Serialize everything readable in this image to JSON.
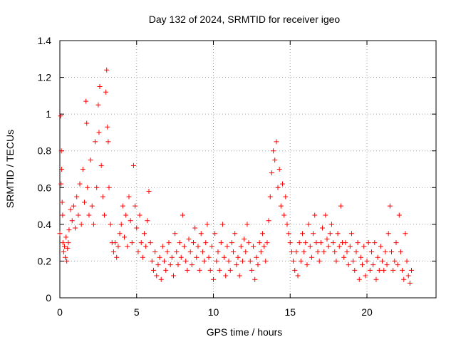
{
  "chart_data": {
    "type": "scatter",
    "title": "Day 132 of 2024, SRMTID for receiver igeo",
    "xlabel": "GPS time / hours",
    "ylabel": "SRMTID / TECUs",
    "xlim": [
      0,
      24.5
    ],
    "ylim": [
      0,
      1.4
    ],
    "xticks": [
      0,
      5,
      10,
      15,
      20
    ],
    "xtick_labels": [
      "0",
      "5",
      "10",
      "15",
      "20"
    ],
    "yticks": [
      0,
      0.2,
      0.4,
      0.6,
      0.8,
      1,
      1.2,
      1.4
    ],
    "ytick_labels": [
      "0",
      "0.2",
      "0.4",
      "0.6",
      "0.8",
      "1",
      "1.2",
      "1.4"
    ],
    "grid": true,
    "marker": "plus",
    "color": "#ff0000",
    "series": [
      {
        "name": "SRMTID",
        "points": [
          [
            0.0,
            0.35
          ],
          [
            0.05,
            0.99
          ],
          [
            0.08,
            0.62
          ],
          [
            0.1,
            0.8
          ],
          [
            0.12,
            0.7
          ],
          [
            0.15,
            0.52
          ],
          [
            0.18,
            0.45
          ],
          [
            0.2,
            0.3
          ],
          [
            0.25,
            0.25
          ],
          [
            0.3,
            0.28
          ],
          [
            0.35,
            0.22
          ],
          [
            0.4,
            0.33
          ],
          [
            0.45,
            0.2
          ],
          [
            0.5,
            0.27
          ],
          [
            0.55,
            0.3
          ],
          [
            0.6,
            0.37
          ],
          [
            0.7,
            0.48
          ],
          [
            0.8,
            0.42
          ],
          [
            0.9,
            0.5
          ],
          [
            1.0,
            0.38
          ],
          [
            1.1,
            0.55
          ],
          [
            1.2,
            0.45
          ],
          [
            1.3,
            0.62
          ],
          [
            1.4,
            0.4
          ],
          [
            1.5,
            0.7
          ],
          [
            1.6,
            0.52
          ],
          [
            1.7,
            1.07
          ],
          [
            1.75,
            0.95
          ],
          [
            1.8,
            0.6
          ],
          [
            1.9,
            0.45
          ],
          [
            2.0,
            0.75
          ],
          [
            2.1,
            0.5
          ],
          [
            2.2,
            0.4
          ],
          [
            2.3,
            0.85
          ],
          [
            2.4,
            0.6
          ],
          [
            2.5,
            1.05
          ],
          [
            2.55,
            0.9
          ],
          [
            2.6,
            1.15
          ],
          [
            2.7,
            0.72
          ],
          [
            2.8,
            0.55
          ],
          [
            2.9,
            0.45
          ],
          [
            3.0,
            1.12
          ],
          [
            3.05,
            1.24
          ],
          [
            3.1,
            0.93
          ],
          [
            3.15,
            0.85
          ],
          [
            3.2,
            0.6
          ],
          [
            3.3,
            0.4
          ],
          [
            3.4,
            0.3
          ],
          [
            3.5,
            0.25
          ],
          [
            3.6,
            0.3
          ],
          [
            3.7,
            0.22
          ],
          [
            3.8,
            0.28
          ],
          [
            3.9,
            0.35
          ],
          [
            4.0,
            0.4
          ],
          [
            4.1,
            0.5
          ],
          [
            4.2,
            0.33
          ],
          [
            4.3,
            0.45
          ],
          [
            4.4,
            0.28
          ],
          [
            4.5,
            0.55
          ],
          [
            4.6,
            0.42
          ],
          [
            4.7,
            0.3
          ],
          [
            4.8,
            0.72
          ],
          [
            4.9,
            0.5
          ],
          [
            5.0,
            0.38
          ],
          [
            5.1,
            0.25
          ],
          [
            5.2,
            0.45
          ],
          [
            5.3,
            0.3
          ],
          [
            5.4,
            0.22
          ],
          [
            5.5,
            0.35
          ],
          [
            5.6,
            0.28
          ],
          [
            5.7,
            0.42
          ],
          [
            5.8,
            0.58
          ],
          [
            5.9,
            0.3
          ],
          [
            6.0,
            0.2
          ],
          [
            6.1,
            0.15
          ],
          [
            6.2,
            0.25
          ],
          [
            6.3,
            0.12
          ],
          [
            6.4,
            0.18
          ],
          [
            6.5,
            0.22
          ],
          [
            6.6,
            0.1
          ],
          [
            6.7,
            0.28
          ],
          [
            6.8,
            0.2
          ],
          [
            6.9,
            0.15
          ],
          [
            7.0,
            0.25
          ],
          [
            7.1,
            0.3
          ],
          [
            7.2,
            0.18
          ],
          [
            7.3,
            0.22
          ],
          [
            7.4,
            0.12
          ],
          [
            7.5,
            0.35
          ],
          [
            7.6,
            0.25
          ],
          [
            7.7,
            0.18
          ],
          [
            7.8,
            0.3
          ],
          [
            7.9,
            0.22
          ],
          [
            8.0,
            0.45
          ],
          [
            8.1,
            0.28
          ],
          [
            8.2,
            0.2
          ],
          [
            8.3,
            0.15
          ],
          [
            8.4,
            0.32
          ],
          [
            8.5,
            0.25
          ],
          [
            8.6,
            0.18
          ],
          [
            8.7,
            0.3
          ],
          [
            8.8,
            0.38
          ],
          [
            8.9,
            0.22
          ],
          [
            9.0,
            0.28
          ],
          [
            9.1,
            0.15
          ],
          [
            9.2,
            0.35
          ],
          [
            9.3,
            0.25
          ],
          [
            9.4,
            0.2
          ],
          [
            9.5,
            0.3
          ],
          [
            9.6,
            0.4
          ],
          [
            9.7,
            0.22
          ],
          [
            9.8,
            0.15
          ],
          [
            9.9,
            0.28
          ],
          [
            10.0,
            0.1
          ],
          [
            10.1,
            0.35
          ],
          [
            10.2,
            0.2
          ],
          [
            10.3,
            0.25
          ],
          [
            10.4,
            0.15
          ],
          [
            10.5,
            0.3
          ],
          [
            10.6,
            0.4
          ],
          [
            10.7,
            0.22
          ],
          [
            10.8,
            0.12
          ],
          [
            10.9,
            0.28
          ],
          [
            11.0,
            0.2
          ],
          [
            11.1,
            0.15
          ],
          [
            11.2,
            0.3
          ],
          [
            11.3,
            0.25
          ],
          [
            11.4,
            0.35
          ],
          [
            11.5,
            0.18
          ],
          [
            11.6,
            0.22
          ],
          [
            11.7,
            0.12
          ],
          [
            11.8,
            0.28
          ],
          [
            11.9,
            0.2
          ],
          [
            12.0,
            0.32
          ],
          [
            12.1,
            0.25
          ],
          [
            12.2,
            0.4
          ],
          [
            12.3,
            0.3
          ],
          [
            12.4,
            0.2
          ],
          [
            12.5,
            0.15
          ],
          [
            12.6,
            0.28
          ],
          [
            12.7,
            0.1
          ],
          [
            12.8,
            0.22
          ],
          [
            12.9,
            0.18
          ],
          [
            13.0,
            0.3
          ],
          [
            13.1,
            0.25
          ],
          [
            13.2,
            0.35
          ],
          [
            13.3,
            0.28
          ],
          [
            13.4,
            0.2
          ],
          [
            13.5,
            0.3
          ],
          [
            13.6,
            0.42
          ],
          [
            13.7,
            0.55
          ],
          [
            13.8,
            0.68
          ],
          [
            13.9,
            0.8
          ],
          [
            14.0,
            0.75
          ],
          [
            14.1,
            0.85
          ],
          [
            14.2,
            0.6
          ],
          [
            14.3,
            0.7
          ],
          [
            14.4,
            0.5
          ],
          [
            14.5,
            0.62
          ],
          [
            14.6,
            0.45
          ],
          [
            14.7,
            0.55
          ],
          [
            14.8,
            0.4
          ],
          [
            14.9,
            0.35
          ],
          [
            15.0,
            0.3
          ],
          [
            15.1,
            0.25
          ],
          [
            15.2,
            0.2
          ],
          [
            15.3,
            0.15
          ],
          [
            15.4,
            0.25
          ],
          [
            15.5,
            0.12
          ],
          [
            15.6,
            0.3
          ],
          [
            15.7,
            0.2
          ],
          [
            15.8,
            0.35
          ],
          [
            15.9,
            0.25
          ],
          [
            16.0,
            0.3
          ],
          [
            16.1,
            0.18
          ],
          [
            16.2,
            0.4
          ],
          [
            16.3,
            0.28
          ],
          [
            16.4,
            0.22
          ],
          [
            16.5,
            0.35
          ],
          [
            16.6,
            0.45
          ],
          [
            16.7,
            0.3
          ],
          [
            16.8,
            0.25
          ],
          [
            16.9,
            0.2
          ],
          [
            17.0,
            0.3
          ],
          [
            17.1,
            0.38
          ],
          [
            17.2,
            0.25
          ],
          [
            17.3,
            0.45
          ],
          [
            17.4,
            0.32
          ],
          [
            17.5,
            0.28
          ],
          [
            17.6,
            0.35
          ],
          [
            17.7,
            0.4
          ],
          [
            17.8,
            0.3
          ],
          [
            17.9,
            0.25
          ],
          [
            18.0,
            0.2
          ],
          [
            18.1,
            0.35
          ],
          [
            18.2,
            0.28
          ],
          [
            18.3,
            0.5
          ],
          [
            18.4,
            0.3
          ],
          [
            18.5,
            0.22
          ],
          [
            18.6,
            0.3
          ],
          [
            18.7,
            0.25
          ],
          [
            18.8,
            0.18
          ],
          [
            18.9,
            0.28
          ],
          [
            19.0,
            0.35
          ],
          [
            19.1,
            0.2
          ],
          [
            19.2,
            0.15
          ],
          [
            19.3,
            0.25
          ],
          [
            19.4,
            0.3
          ],
          [
            19.5,
            0.1
          ],
          [
            19.6,
            0.22
          ],
          [
            19.7,
            0.18
          ],
          [
            19.8,
            0.28
          ],
          [
            19.9,
            0.12
          ],
          [
            20.0,
            0.2
          ],
          [
            20.1,
            0.3
          ],
          [
            20.2,
            0.15
          ],
          [
            20.3,
            0.25
          ],
          [
            20.4,
            0.18
          ],
          [
            20.5,
            0.3
          ],
          [
            20.6,
            0.1
          ],
          [
            20.7,
            0.22
          ],
          [
            20.8,
            0.15
          ],
          [
            20.9,
            0.28
          ],
          [
            21.0,
            0.2
          ],
          [
            21.1,
            0.15
          ],
          [
            21.2,
            0.25
          ],
          [
            21.3,
            0.18
          ],
          [
            21.4,
            0.35
          ],
          [
            21.5,
            0.5
          ],
          [
            21.6,
            0.25
          ],
          [
            21.7,
            0.15
          ],
          [
            21.8,
            0.2
          ],
          [
            21.9,
            0.3
          ],
          [
            22.0,
            0.18
          ],
          [
            22.1,
            0.45
          ],
          [
            22.2,
            0.25
          ],
          [
            22.3,
            0.15
          ],
          [
            22.4,
            0.1
          ],
          [
            22.5,
            0.35
          ],
          [
            22.6,
            0.2
          ],
          [
            22.7,
            0.12
          ],
          [
            22.8,
            0.08
          ],
          [
            22.9,
            0.15
          ]
        ]
      }
    ]
  }
}
